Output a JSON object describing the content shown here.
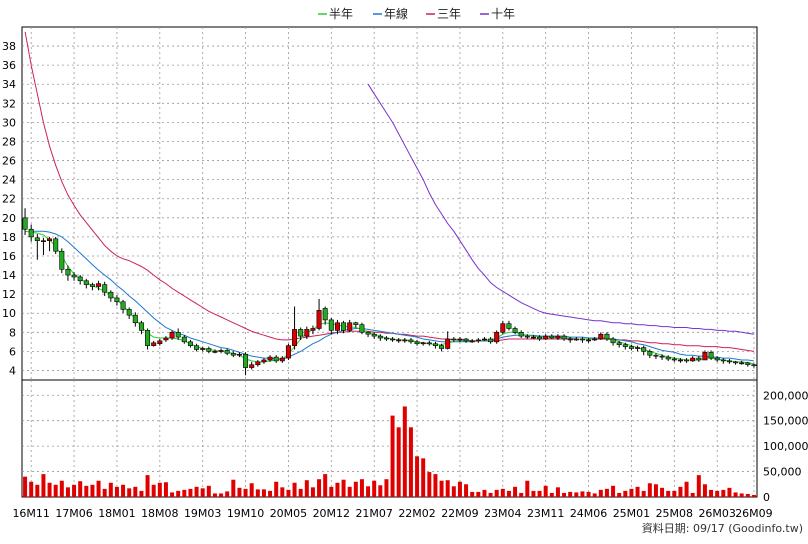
{
  "chart_data": {
    "type": "candlestick",
    "legend": [
      {
        "name": "半年",
        "color": "#33cc33"
      },
      {
        "name": "年線",
        "color": "#1f78d1"
      },
      {
        "name": "三年",
        "color": "#cc2255"
      },
      {
        "name": "十年",
        "color": "#7733cc"
      }
    ],
    "price_axis": {
      "ylim": [
        3,
        40
      ],
      "ticks": [
        "4",
        "6",
        "8",
        "10",
        "12",
        "14",
        "16",
        "18",
        "20",
        "22",
        "24",
        "26",
        "28",
        "30",
        "32",
        "34",
        "36",
        "38"
      ]
    },
    "volume_axis": {
      "ylim": [
        0,
        230000
      ],
      "ticks": [
        "0",
        "50,000",
        "100,000",
        "150,000",
        "200,000"
      ],
      "tick_values": [
        0,
        50000,
        100000,
        150000,
        200000
      ]
    },
    "x_ticks": [
      "16M11",
      "17M06",
      "18M01",
      "18M08",
      "19M03",
      "19M10",
      "20M05",
      "20M12",
      "21M07",
      "22M02",
      "22M09",
      "23M04",
      "23M11",
      "24M06",
      "25M01",
      "25M08",
      "26M03",
      "26M09"
    ],
    "x_tick_index": [
      1,
      8,
      15,
      22,
      29,
      36,
      43,
      50,
      57,
      64,
      71,
      78,
      85,
      92,
      99,
      106,
      113,
      119
    ],
    "footer": "資料日期: 09/17  (Goodinfo.tw)",
    "candles": {
      "open": [
        20.0,
        18.8,
        17.9,
        17.5,
        17.6,
        17.8,
        16.5,
        14.6,
        14.0,
        13.8,
        13.4,
        13.0,
        12.8,
        13.0,
        12.2,
        11.6,
        11.2,
        10.4,
        9.8,
        9.0,
        8.2,
        6.6,
        6.8,
        7.2,
        7.4,
        8.0,
        7.5,
        7.0,
        6.6,
        6.2,
        6.3,
        6.0,
        6.0,
        6.1,
        5.8,
        5.6,
        5.7,
        4.3,
        4.6,
        4.9,
        5.1,
        5.4,
        5.0,
        5.3,
        6.6,
        8.3,
        7.6,
        8.2,
        8.4,
        10.5,
        9.3,
        8.2,
        9.0,
        8.2,
        9.0,
        8.8,
        8.0,
        7.8,
        7.6,
        7.4,
        7.3,
        7.2,
        7.2,
        7.2,
        7.0,
        6.8,
        6.9,
        6.8,
        6.6,
        6.3,
        7.3,
        7.2,
        7.3,
        7.1,
        7.1,
        7.2,
        7.3,
        7.0,
        8.0,
        8.9,
        8.4,
        8.0,
        7.6,
        7.5,
        7.5,
        7.3,
        7.6,
        7.4,
        7.6,
        7.3,
        7.3,
        7.3,
        7.2,
        7.2,
        7.3,
        7.8,
        7.3,
        6.9,
        6.7,
        6.5,
        6.3,
        6.4,
        6.0,
        5.6,
        5.5,
        5.4,
        5.2,
        5.1,
        5.1,
        5.0,
        5.3,
        5.1,
        5.9,
        5.3,
        5.1,
        5.0,
        4.9,
        4.8,
        4.8,
        4.6
      ],
      "close": [
        18.8,
        18.0,
        17.6,
        17.6,
        17.8,
        16.5,
        14.6,
        14.0,
        13.8,
        13.4,
        13.0,
        12.8,
        13.1,
        12.2,
        11.6,
        11.2,
        10.4,
        9.8,
        9.0,
        8.2,
        6.6,
        6.9,
        7.1,
        7.4,
        8.0,
        7.5,
        7.0,
        6.6,
        6.2,
        6.3,
        6.0,
        6.0,
        6.1,
        5.8,
        5.6,
        5.7,
        4.3,
        4.6,
        4.9,
        5.1,
        5.4,
        5.0,
        5.3,
        6.6,
        8.3,
        7.6,
        8.3,
        8.4,
        10.3,
        9.3,
        8.2,
        9.0,
        8.2,
        9.0,
        8.8,
        8.0,
        7.8,
        7.6,
        7.4,
        7.3,
        7.2,
        7.2,
        7.2,
        7.0,
        6.8,
        6.9,
        6.8,
        6.6,
        6.3,
        7.3,
        7.2,
        7.3,
        7.1,
        7.1,
        7.2,
        7.3,
        7.0,
        8.0,
        8.9,
        8.4,
        8.0,
        7.6,
        7.5,
        7.5,
        7.3,
        7.6,
        7.4,
        7.6,
        7.3,
        7.3,
        7.3,
        7.2,
        7.2,
        7.3,
        7.8,
        7.3,
        6.9,
        6.7,
        6.5,
        6.3,
        6.4,
        6.0,
        5.6,
        5.5,
        5.4,
        5.2,
        5.1,
        5.1,
        5.0,
        5.3,
        5.1,
        5.9,
        5.3,
        5.1,
        5.0,
        4.9,
        4.8,
        4.8,
        4.6,
        4.5
      ],
      "high": [
        21.0,
        19.3,
        18.3,
        17.9,
        18.0,
        18.0,
        16.8,
        15.0,
        14.3,
        14.0,
        13.6,
        13.2,
        13.4,
        13.3,
        12.4,
        11.9,
        11.4,
        10.6,
        10.1,
        9.2,
        8.4,
        7.1,
        7.3,
        7.6,
        8.2,
        8.4,
        7.7,
        7.2,
        6.8,
        6.5,
        6.5,
        6.2,
        6.3,
        6.3,
        6.0,
        5.9,
        5.9,
        4.9,
        5.1,
        5.3,
        5.6,
        5.6,
        5.5,
        6.8,
        10.7,
        8.5,
        8.6,
        8.7,
        11.5,
        10.7,
        9.5,
        9.3,
        9.2,
        9.3,
        9.1,
        9.0,
        8.1,
        8.0,
        7.8,
        7.6,
        7.5,
        7.4,
        7.4,
        7.4,
        7.2,
        7.0,
        7.1,
        7.0,
        6.8,
        8.1,
        7.5,
        7.5,
        7.4,
        7.3,
        7.4,
        7.5,
        7.5,
        8.2,
        9.2,
        9.2,
        8.6,
        8.2,
        7.8,
        7.7,
        7.7,
        7.8,
        7.8,
        7.8,
        7.8,
        7.5,
        7.5,
        7.5,
        7.4,
        7.5,
        8.0,
        8.0,
        7.5,
        7.1,
        6.9,
        6.7,
        6.6,
        6.6,
        6.2,
        5.8,
        5.7,
        5.6,
        5.4,
        5.3,
        5.3,
        5.5,
        5.5,
        6.1,
        6.1,
        5.5,
        5.3,
        5.2,
        5.0,
        5.0,
        4.9,
        4.7
      ],
      "low": [
        18.2,
        17.5,
        15.6,
        16.1,
        16.5,
        16.2,
        14.2,
        13.4,
        13.4,
        13.0,
        12.6,
        12.4,
        12.4,
        11.8,
        11.2,
        10.8,
        10.0,
        9.4,
        8.6,
        7.8,
        6.2,
        6.5,
        6.6,
        7.0,
        7.2,
        7.2,
        6.8,
        6.4,
        6.0,
        6.0,
        5.8,
        5.8,
        5.8,
        5.6,
        5.4,
        5.4,
        3.5,
        4.1,
        4.4,
        4.7,
        4.9,
        4.8,
        4.8,
        5.1,
        6.2,
        7.2,
        7.3,
        7.8,
        8.2,
        8.8,
        7.8,
        7.8,
        7.9,
        8.0,
        8.5,
        7.8,
        7.5,
        7.3,
        7.1,
        7.1,
        7.0,
        6.9,
        6.9,
        6.8,
        6.6,
        6.6,
        6.6,
        6.3,
        6.0,
        6.2,
        7.0,
        7.0,
        6.9,
        6.9,
        6.9,
        7.1,
        6.8,
        6.8,
        7.8,
        8.2,
        7.8,
        7.4,
        7.3,
        7.3,
        7.1,
        7.2,
        7.3,
        7.2,
        7.1,
        6.9,
        7.1,
        6.9,
        6.9,
        7.1,
        7.2,
        7.1,
        6.6,
        6.4,
        6.2,
        6.1,
        6.0,
        5.6,
        5.3,
        5.2,
        5.1,
        5.0,
        4.9,
        4.8,
        4.8,
        4.9,
        4.9,
        5.1,
        5.1,
        4.9,
        4.7,
        4.7,
        4.6,
        4.6,
        4.4,
        4.3
      ]
    },
    "volume": [
      40000,
      30000,
      24000,
      45000,
      28000,
      24000,
      32000,
      19000,
      24000,
      31000,
      22000,
      24000,
      32000,
      16000,
      28000,
      20000,
      24000,
      17000,
      20000,
      12000,
      43000,
      24000,
      28000,
      29000,
      9000,
      12000,
      14000,
      16000,
      20000,
      17000,
      22000,
      7000,
      7000,
      11000,
      34000,
      18000,
      16000,
      27000,
      15000,
      15000,
      12000,
      30000,
      19000,
      14000,
      28000,
      16000,
      33000,
      19000,
      35000,
      45000,
      20000,
      28000,
      34000,
      20000,
      30000,
      35000,
      21000,
      32000,
      23000,
      35000,
      160000,
      137000,
      178000,
      137000,
      80000,
      76000,
      49000,
      45000,
      32000,
      33000,
      21000,
      30000,
      25000,
      10000,
      10000,
      14000,
      8000,
      14000,
      16000,
      12000,
      20000,
      8000,
      32000,
      12000,
      12000,
      22000,
      8000,
      19000,
      8000,
      10000,
      9000,
      11000,
      10000,
      7000,
      14000,
      16000,
      22000,
      8000,
      12000,
      16000,
      20000,
      12000,
      27000,
      25000,
      18000,
      12000,
      12000,
      20000,
      30000,
      8000,
      43000,
      25000,
      14000,
      12000,
      14000,
      18000,
      9000,
      7000,
      6000,
      4000
    ],
    "ma_half": [
      18.6,
      18.5,
      18.4,
      18.2,
      17.7,
      17.0,
      16.0,
      14.9,
      14.1,
      13.6,
      13.2,
      12.9,
      12.6,
      12.3,
      11.9,
      11.4,
      10.8,
      10.1,
      9.4,
      8.6,
      7.9,
      7.5,
      7.4,
      7.4,
      7.4,
      7.3,
      7.1,
      6.8,
      6.5,
      6.3,
      6.2,
      6.1,
      6.0,
      5.9,
      5.8,
      5.6,
      5.2,
      5.0,
      4.9,
      4.9,
      5.0,
      5.1,
      5.2,
      5.7,
      6.5,
      7.3,
      7.9,
      8.3,
      8.8,
      9.0,
      8.9,
      8.8,
      8.6,
      8.6,
      8.5,
      8.3,
      8.0,
      7.8,
      7.6,
      7.4,
      7.3,
      7.2,
      7.2,
      7.1,
      7.0,
      6.9,
      6.8,
      6.7,
      6.7,
      6.9,
      7.0,
      7.1,
      7.1,
      7.1,
      7.1,
      7.2,
      7.2,
      7.4,
      7.8,
      8.0,
      8.0,
      7.8,
      7.7,
      7.6,
      7.5,
      7.5,
      7.5,
      7.5,
      7.4,
      7.4,
      7.3,
      7.3,
      7.3,
      7.3,
      7.4,
      7.4,
      7.2,
      7.0,
      6.8,
      6.6,
      6.4,
      6.2,
      6.0,
      5.8,
      5.6,
      5.4,
      5.3,
      5.2,
      5.1,
      5.1,
      5.1,
      5.3,
      5.3,
      5.2,
      5.1,
      5.0,
      4.9,
      4.9,
      4.8,
      4.7
    ],
    "ma_year": [
      null,
      18.6,
      18.6,
      18.6,
      18.5,
      18.3,
      18.0,
      17.5,
      16.9,
      16.3,
      15.7,
      15.1,
      14.5,
      14.0,
      13.5,
      12.9,
      12.4,
      11.8,
      11.3,
      10.7,
      10.1,
      9.5,
      9.0,
      8.5,
      8.2,
      7.9,
      7.7,
      7.4,
      7.2,
      7.0,
      6.8,
      6.6,
      6.4,
      6.3,
      6.1,
      5.9,
      5.7,
      5.5,
      5.4,
      5.3,
      5.3,
      5.2,
      5.2,
      5.4,
      5.7,
      6.0,
      6.4,
      6.8,
      7.1,
      7.5,
      7.8,
      8.0,
      8.2,
      8.3,
      8.4,
      8.4,
      8.3,
      8.2,
      8.1,
      8.0,
      7.9,
      7.8,
      7.7,
      7.6,
      7.5,
      7.3,
      7.2,
      7.1,
      7.0,
      7.0,
      7.0,
      7.0,
      7.0,
      7.0,
      7.1,
      7.1,
      7.1,
      7.3,
      7.5,
      7.6,
      7.7,
      7.7,
      7.7,
      7.7,
      7.6,
      7.6,
      7.6,
      7.6,
      7.6,
      7.5,
      7.5,
      7.5,
      7.4,
      7.4,
      7.4,
      7.4,
      7.3,
      7.2,
      7.1,
      7.0,
      6.8,
      6.7,
      6.5,
      6.3,
      6.1,
      6.0,
      5.9,
      5.7,
      5.6,
      5.6,
      5.5,
      5.5,
      5.4,
      5.4,
      5.3,
      5.3,
      5.2,
      5.1,
      5.1,
      5.0
    ],
    "ma_3yr": [
      39.5,
      36.0,
      33.0,
      30.0,
      27.5,
      25.5,
      23.8,
      22.4,
      21.3,
      20.3,
      19.5,
      18.7,
      17.9,
      17.1,
      16.5,
      16.0,
      15.7,
      15.5,
      15.2,
      14.9,
      14.5,
      14.0,
      13.5,
      13.1,
      12.6,
      12.2,
      11.8,
      11.4,
      11.0,
      10.6,
      10.2,
      9.9,
      9.6,
      9.3,
      9.0,
      8.7,
      8.4,
      8.1,
      7.9,
      7.7,
      7.5,
      7.3,
      7.2,
      7.2,
      7.3,
      7.4,
      7.5,
      7.6,
      7.7,
      7.8,
      7.9,
      8.0,
      8.0,
      8.1,
      8.1,
      8.1,
      8.1,
      8.0,
      8.0,
      7.9,
      7.9,
      7.8,
      7.8,
      7.7,
      7.6,
      7.6,
      7.5,
      7.4,
      7.3,
      7.3,
      7.2,
      7.2,
      7.2,
      7.1,
      7.1,
      7.1,
      7.1,
      7.1,
      7.2,
      7.3,
      7.3,
      7.3,
      7.3,
      7.3,
      7.3,
      7.3,
      7.3,
      7.3,
      7.3,
      7.3,
      7.3,
      7.3,
      7.3,
      7.3,
      7.3,
      7.3,
      7.2,
      7.2,
      7.2,
      7.1,
      7.1,
      7.0,
      6.9,
      6.9,
      6.8,
      6.8,
      6.7,
      6.7,
      6.6,
      6.6,
      6.6,
      6.5,
      6.5,
      6.5,
      6.4,
      6.4,
      6.3,
      6.2,
      6.1,
      6.0
    ],
    "ma_10yr": [
      null,
      null,
      null,
      null,
      null,
      null,
      null,
      null,
      null,
      null,
      null,
      null,
      null,
      null,
      null,
      null,
      null,
      null,
      null,
      null,
      null,
      null,
      null,
      null,
      null,
      null,
      null,
      null,
      null,
      null,
      null,
      null,
      null,
      null,
      null,
      null,
      null,
      null,
      null,
      null,
      null,
      null,
      null,
      null,
      null,
      null,
      null,
      null,
      null,
      null,
      null,
      null,
      null,
      null,
      null,
      null,
      34.0,
      33.0,
      32.0,
      31.0,
      30.0,
      28.8,
      27.6,
      26.4,
      25.2,
      24.0,
      22.6,
      21.4,
      20.4,
      19.4,
      18.6,
      17.6,
      16.6,
      15.6,
      14.7,
      14.0,
      13.2,
      12.7,
      12.3,
      11.9,
      11.5,
      11.1,
      10.8,
      10.5,
      10.2,
      10.0,
      9.9,
      9.8,
      9.7,
      9.6,
      9.5,
      9.4,
      9.3,
      9.2,
      9.2,
      9.1,
      9.0,
      9.0,
      8.9,
      8.9,
      8.8,
      8.8,
      8.7,
      8.7,
      8.6,
      8.6,
      8.5,
      8.5,
      8.5,
      8.4,
      8.4,
      8.3,
      8.3,
      8.2,
      8.2,
      8.1,
      8.1,
      8.0,
      7.9,
      7.8
    ]
  }
}
